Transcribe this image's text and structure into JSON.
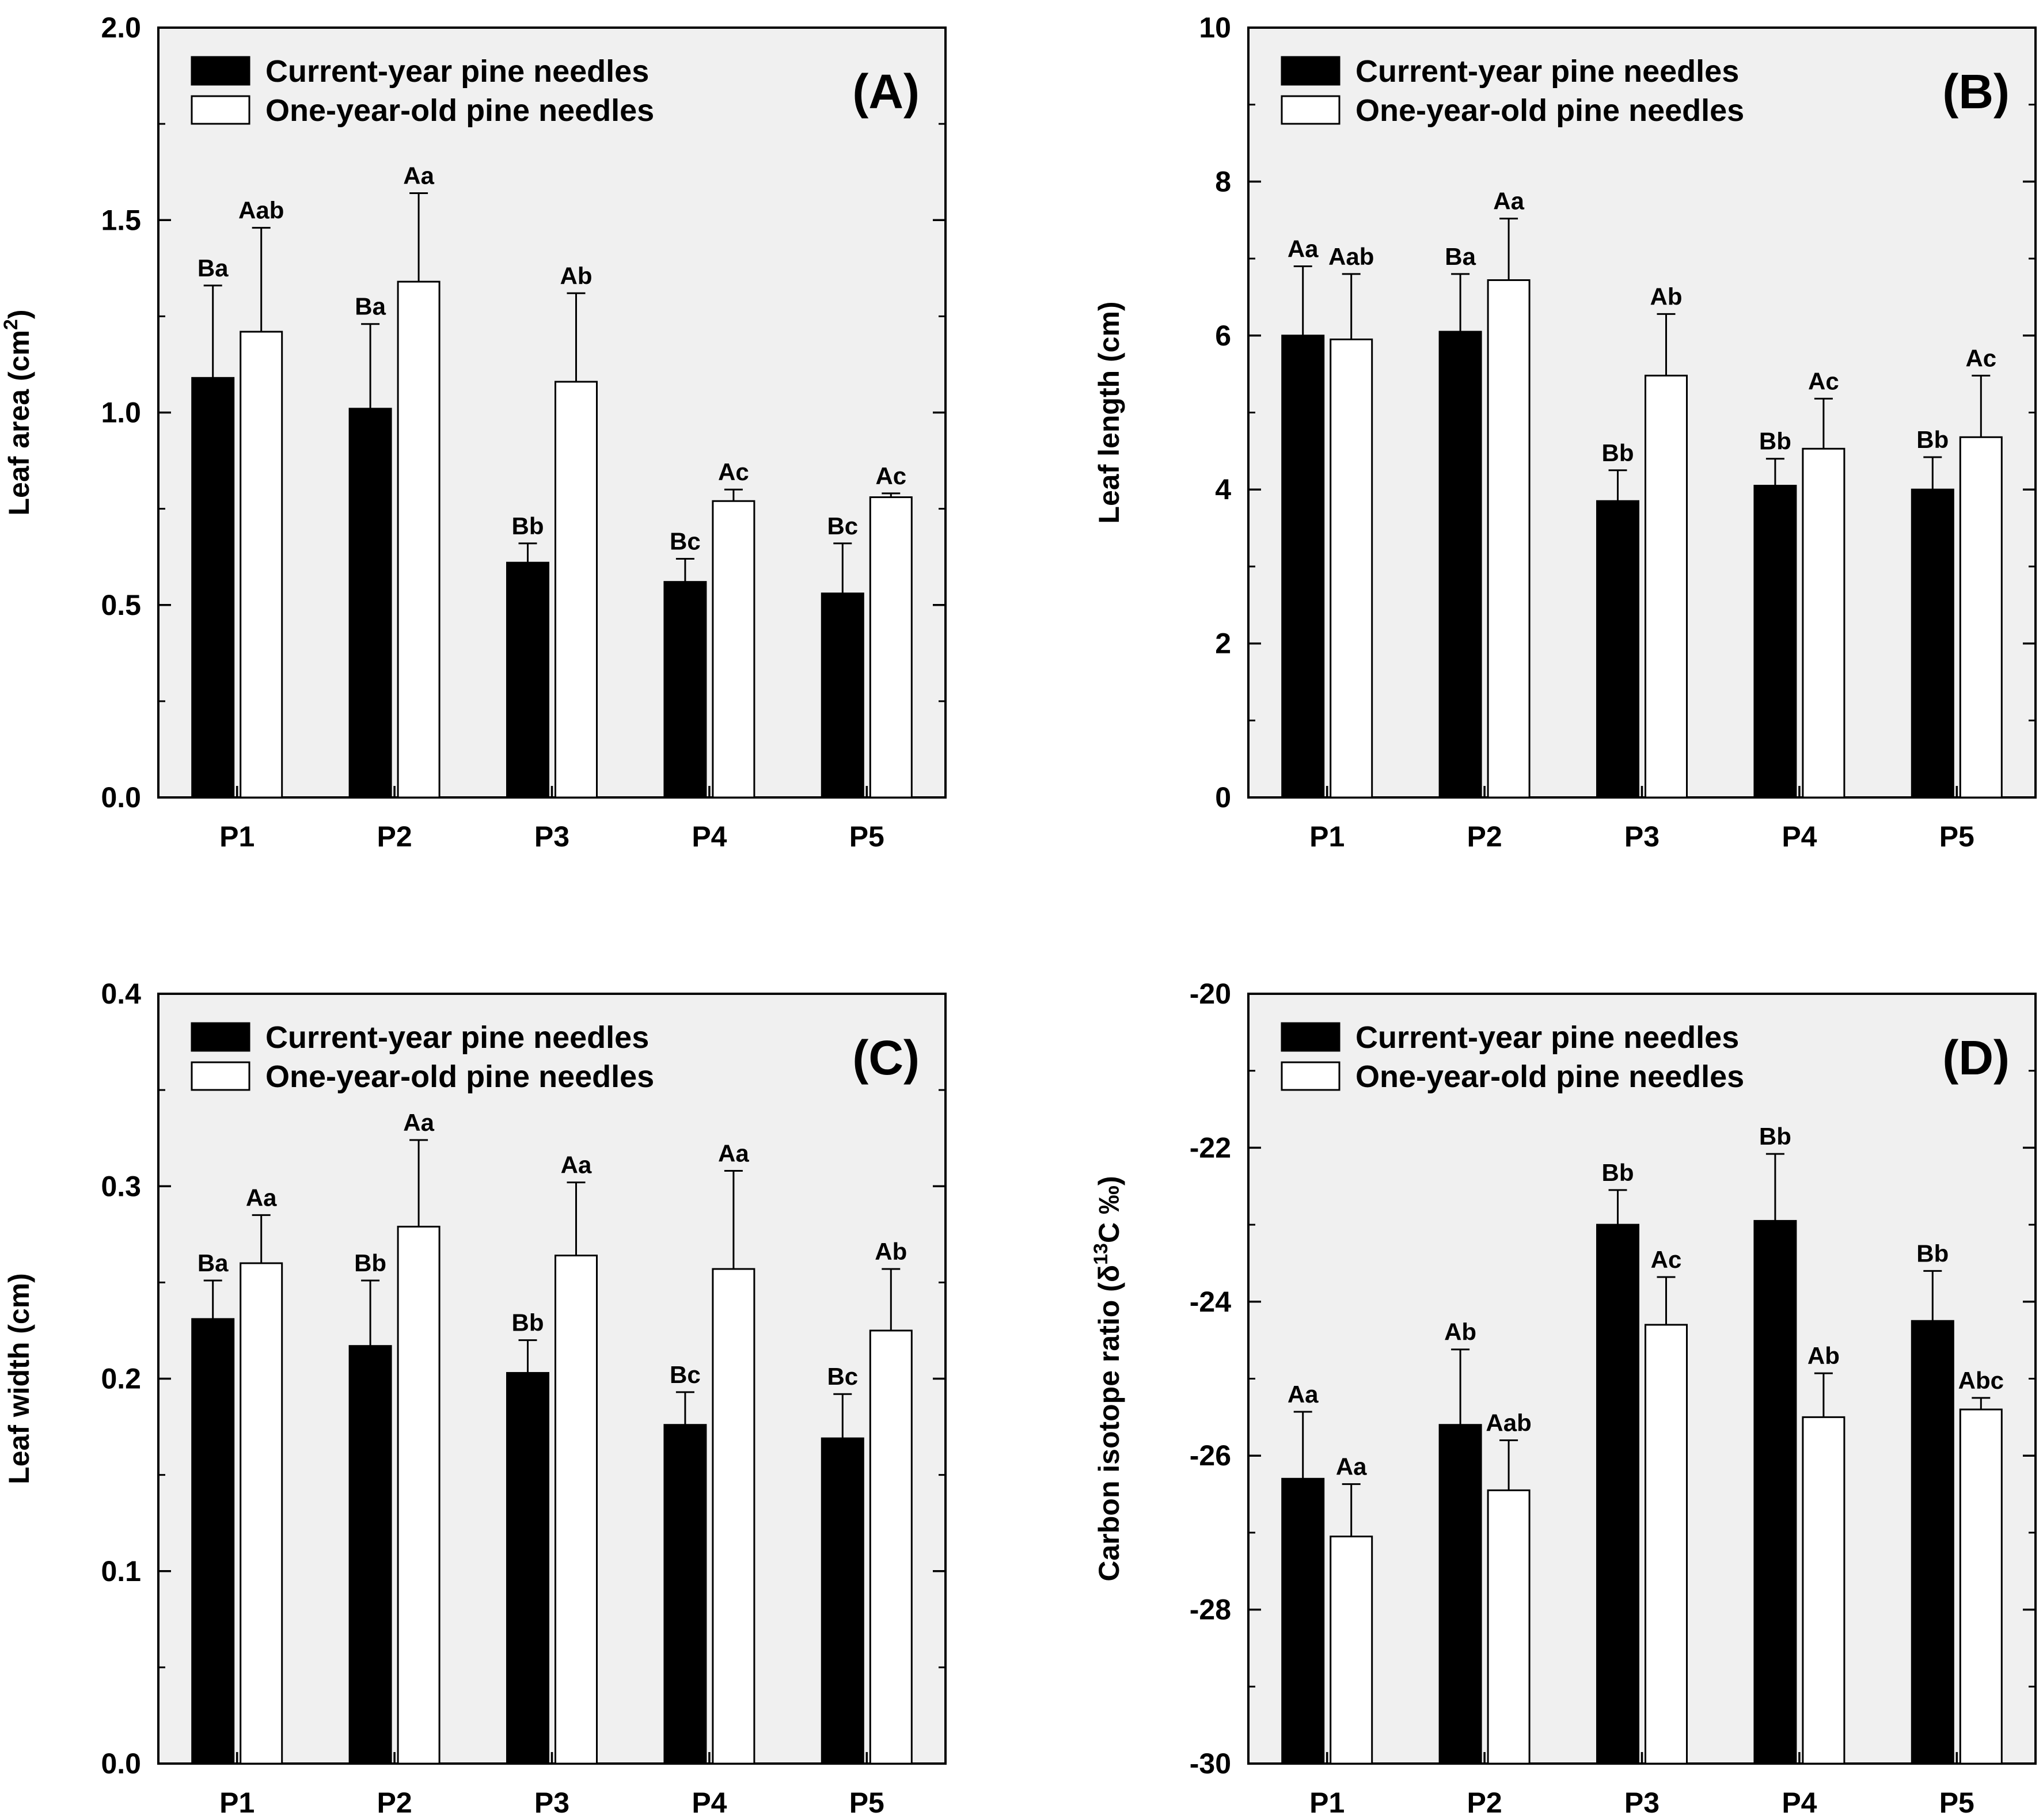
{
  "chart_data": [
    {
      "type": "bar",
      "panel_label": "(A)",
      "ylabel_text": "Leaf area (cm",
      "ylabel_sup": "2",
      "ylabel_tail": ")",
      "ylim": [
        0,
        2.0
      ],
      "yticks": [
        "0.0",
        "0.5",
        "1.0",
        "1.5",
        "2.0"
      ],
      "categories": [
        "P1",
        "P2",
        "P3",
        "P4",
        "P5"
      ],
      "legend": [
        "Current-year pine needles",
        "One-year-old pine needles"
      ],
      "legend_position": "top-left",
      "grid": false,
      "series": [
        {
          "name": "Current-year pine needles",
          "color": "#000000",
          "values": [
            1.09,
            1.01,
            0.61,
            0.56,
            0.53
          ],
          "errors": [
            0.24,
            0.22,
            0.05,
            0.06,
            0.13
          ],
          "labels": [
            "Ba",
            "Ba",
            "Bb",
            "Bc",
            "Bc"
          ]
        },
        {
          "name": "One-year-old pine needles",
          "color": "#ffffff",
          "values": [
            1.21,
            1.34,
            1.08,
            0.77,
            0.78
          ],
          "errors": [
            0.27,
            0.23,
            0.23,
            0.03,
            0.01
          ],
          "labels": [
            "Aab",
            "Aa",
            "Ab",
            "Ac",
            "Ac"
          ]
        }
      ]
    },
    {
      "type": "bar",
      "panel_label": "(B)",
      "ylabel_text": "Leaf length (cm)",
      "ylim": [
        0,
        10
      ],
      "yticks": [
        "0",
        "2",
        "4",
        "6",
        "8",
        "10"
      ],
      "categories": [
        "P1",
        "P2",
        "P3",
        "P4",
        "P5"
      ],
      "legend": [
        "Current-year pine needles",
        "One-year-old pine needles"
      ],
      "legend_position": "top-left",
      "grid": false,
      "series": [
        {
          "name": "Current-year pine needles",
          "color": "#000000",
          "values": [
            6.0,
            6.05,
            3.85,
            4.05,
            4.0
          ],
          "errors": [
            0.9,
            0.75,
            0.4,
            0.35,
            0.42
          ],
          "labels": [
            "Aa",
            "Ba",
            "Bb",
            "Bb",
            "Bb"
          ]
        },
        {
          "name": "One-year-old pine needles",
          "color": "#ffffff",
          "values": [
            5.95,
            6.72,
            5.48,
            4.53,
            4.68
          ],
          "errors": [
            0.85,
            0.8,
            0.8,
            0.65,
            0.8
          ],
          "labels": [
            "Aab",
            "Aa",
            "Ab",
            "Ac",
            "Ac"
          ]
        }
      ]
    },
    {
      "type": "bar",
      "panel_label": "(C)",
      "ylabel_text": "Leaf width (cm)",
      "ylim": [
        0,
        0.4
      ],
      "yticks": [
        "0.0",
        "0.1",
        "0.2",
        "0.3",
        "0.4"
      ],
      "categories": [
        "P1",
        "P2",
        "P3",
        "P4",
        "P5"
      ],
      "legend": [
        "Current-year pine needles",
        "One-year-old pine needles"
      ],
      "legend_position": "top-left",
      "grid": false,
      "series": [
        {
          "name": "Current-year pine needles",
          "color": "#000000",
          "values": [
            0.231,
            0.217,
            0.203,
            0.176,
            0.169
          ],
          "errors": [
            0.02,
            0.034,
            0.017,
            0.017,
            0.023
          ],
          "labels": [
            "Ba",
            "Bb",
            "Bb",
            "Bc",
            "Bc"
          ]
        },
        {
          "name": "One-year-old pine needles",
          "color": "#ffffff",
          "values": [
            0.26,
            0.279,
            0.264,
            0.257,
            0.225
          ],
          "errors": [
            0.025,
            0.045,
            0.038,
            0.051,
            0.032
          ],
          "labels": [
            "Aa",
            "Aa",
            "Aa",
            "Aa",
            "Ab"
          ]
        }
      ]
    },
    {
      "type": "bar",
      "panel_label": "(D)",
      "ylabel_text": "Carbon isotope ratio (δ",
      "ylabel_sup": "13",
      "ylabel_tail": "C ‰)",
      "ylim": [
        -30,
        -20
      ],
      "yticks": [
        "-30",
        "-28",
        "-26",
        "-24",
        "-22",
        "-20"
      ],
      "categories": [
        "P1",
        "P2",
        "P3",
        "P4",
        "P5"
      ],
      "legend": [
        "Current-year pine needles",
        "One-year-old pine needles"
      ],
      "legend_position": "top-left",
      "grid": false,
      "series": [
        {
          "name": "Current-year pine needles",
          "color": "#000000",
          "values": [
            -26.3,
            -25.6,
            -23.0,
            -22.95,
            -24.25
          ],
          "errors": [
            0.87,
            0.98,
            0.45,
            0.87,
            0.65
          ],
          "labels": [
            "Aa",
            "Ab",
            "Bb",
            "Bb",
            "Bb"
          ]
        },
        {
          "name": "One-year-old pine needles",
          "color": "#ffffff",
          "values": [
            -27.05,
            -26.45,
            -24.3,
            -25.5,
            -25.4
          ],
          "errors": [
            0.68,
            0.65,
            0.62,
            0.57,
            0.15
          ],
          "labels": [
            "Aa",
            "Aab",
            "Ac",
            "Ab",
            "Abc"
          ]
        }
      ]
    }
  ]
}
